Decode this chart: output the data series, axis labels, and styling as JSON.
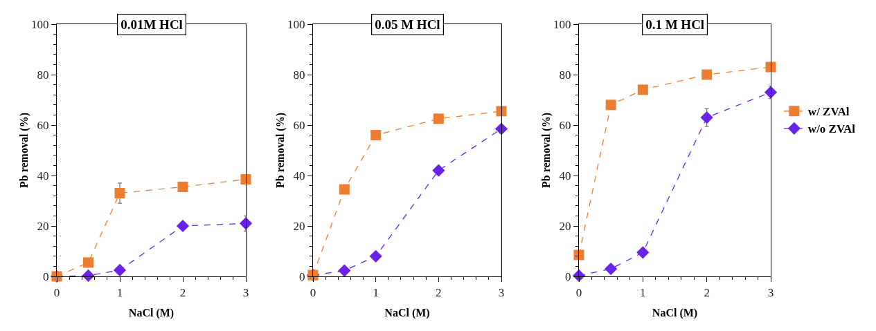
{
  "chart_data": [
    {
      "type": "line",
      "title": "0.01M HCl",
      "xlabel": "NaCl (M)",
      "ylabel": "Pb removal (%)",
      "x": [
        0,
        0.5,
        1,
        2,
        3
      ],
      "xlim": [
        0,
        3
      ],
      "xticks": [
        0,
        1,
        2,
        3
      ],
      "ylim": [
        0,
        100
      ],
      "yticks": [
        0,
        20,
        40,
        60,
        80,
        100
      ],
      "grid": false,
      "legend": false,
      "line_style": "dashed",
      "series": [
        {
          "color": "#ed7d31",
          "marker": "square",
          "values": [
            0,
            5.5,
            33,
            35.5,
            38.5
          ],
          "errors": [
            null,
            null,
            4,
            null,
            null
          ]
        },
        {
          "color": "#6a22e6",
          "marker": "diamond",
          "values": [
            0,
            0.3,
            2.5,
            20,
            21
          ],
          "errors": [
            null,
            null,
            null,
            null,
            3
          ]
        }
      ]
    },
    {
      "type": "line",
      "title": "0.05 M HCl",
      "xlabel": "NaCl (M)",
      "ylabel": "Pb removal (%)",
      "x": [
        0,
        0.5,
        1,
        2,
        3
      ],
      "xlim": [
        0,
        3
      ],
      "xticks": [
        0,
        1,
        2,
        3
      ],
      "ylim": [
        0,
        100
      ],
      "yticks": [
        0,
        20,
        40,
        60,
        80,
        100
      ],
      "grid": false,
      "legend": false,
      "line_style": "dashed",
      "series": [
        {
          "color": "#ed7d31",
          "marker": "square",
          "values": [
            0.5,
            34.5,
            56,
            62.5,
            65.5
          ]
        },
        {
          "color": "#6a22e6",
          "marker": "diamond",
          "values": [
            0.5,
            2.3,
            8,
            42,
            58.5
          ]
        }
      ]
    },
    {
      "type": "line",
      "title": "0.1 M HCl",
      "xlabel": "NaCl (M)",
      "ylabel": "Pb removal (%)",
      "x": [
        0,
        0.5,
        1,
        2,
        3
      ],
      "xlim": [
        0,
        3
      ],
      "xticks": [
        0,
        1,
        2,
        3
      ],
      "ylim": [
        0,
        100
      ],
      "yticks": [
        0,
        20,
        40,
        60,
        80,
        100
      ],
      "grid": false,
      "legend": "right",
      "line_style": "dashed",
      "series": [
        {
          "name": "w/ ZVAl",
          "color": "#ed7d31",
          "marker": "square",
          "values": [
            8.5,
            68,
            74,
            80,
            83
          ]
        },
        {
          "name": "w/o ZVAl",
          "color": "#6a22e6",
          "marker": "diamond",
          "values": [
            0.3,
            3,
            9.5,
            63,
            73
          ],
          "errors": [
            null,
            null,
            null,
            3.5,
            2.5
          ]
        }
      ]
    }
  ]
}
